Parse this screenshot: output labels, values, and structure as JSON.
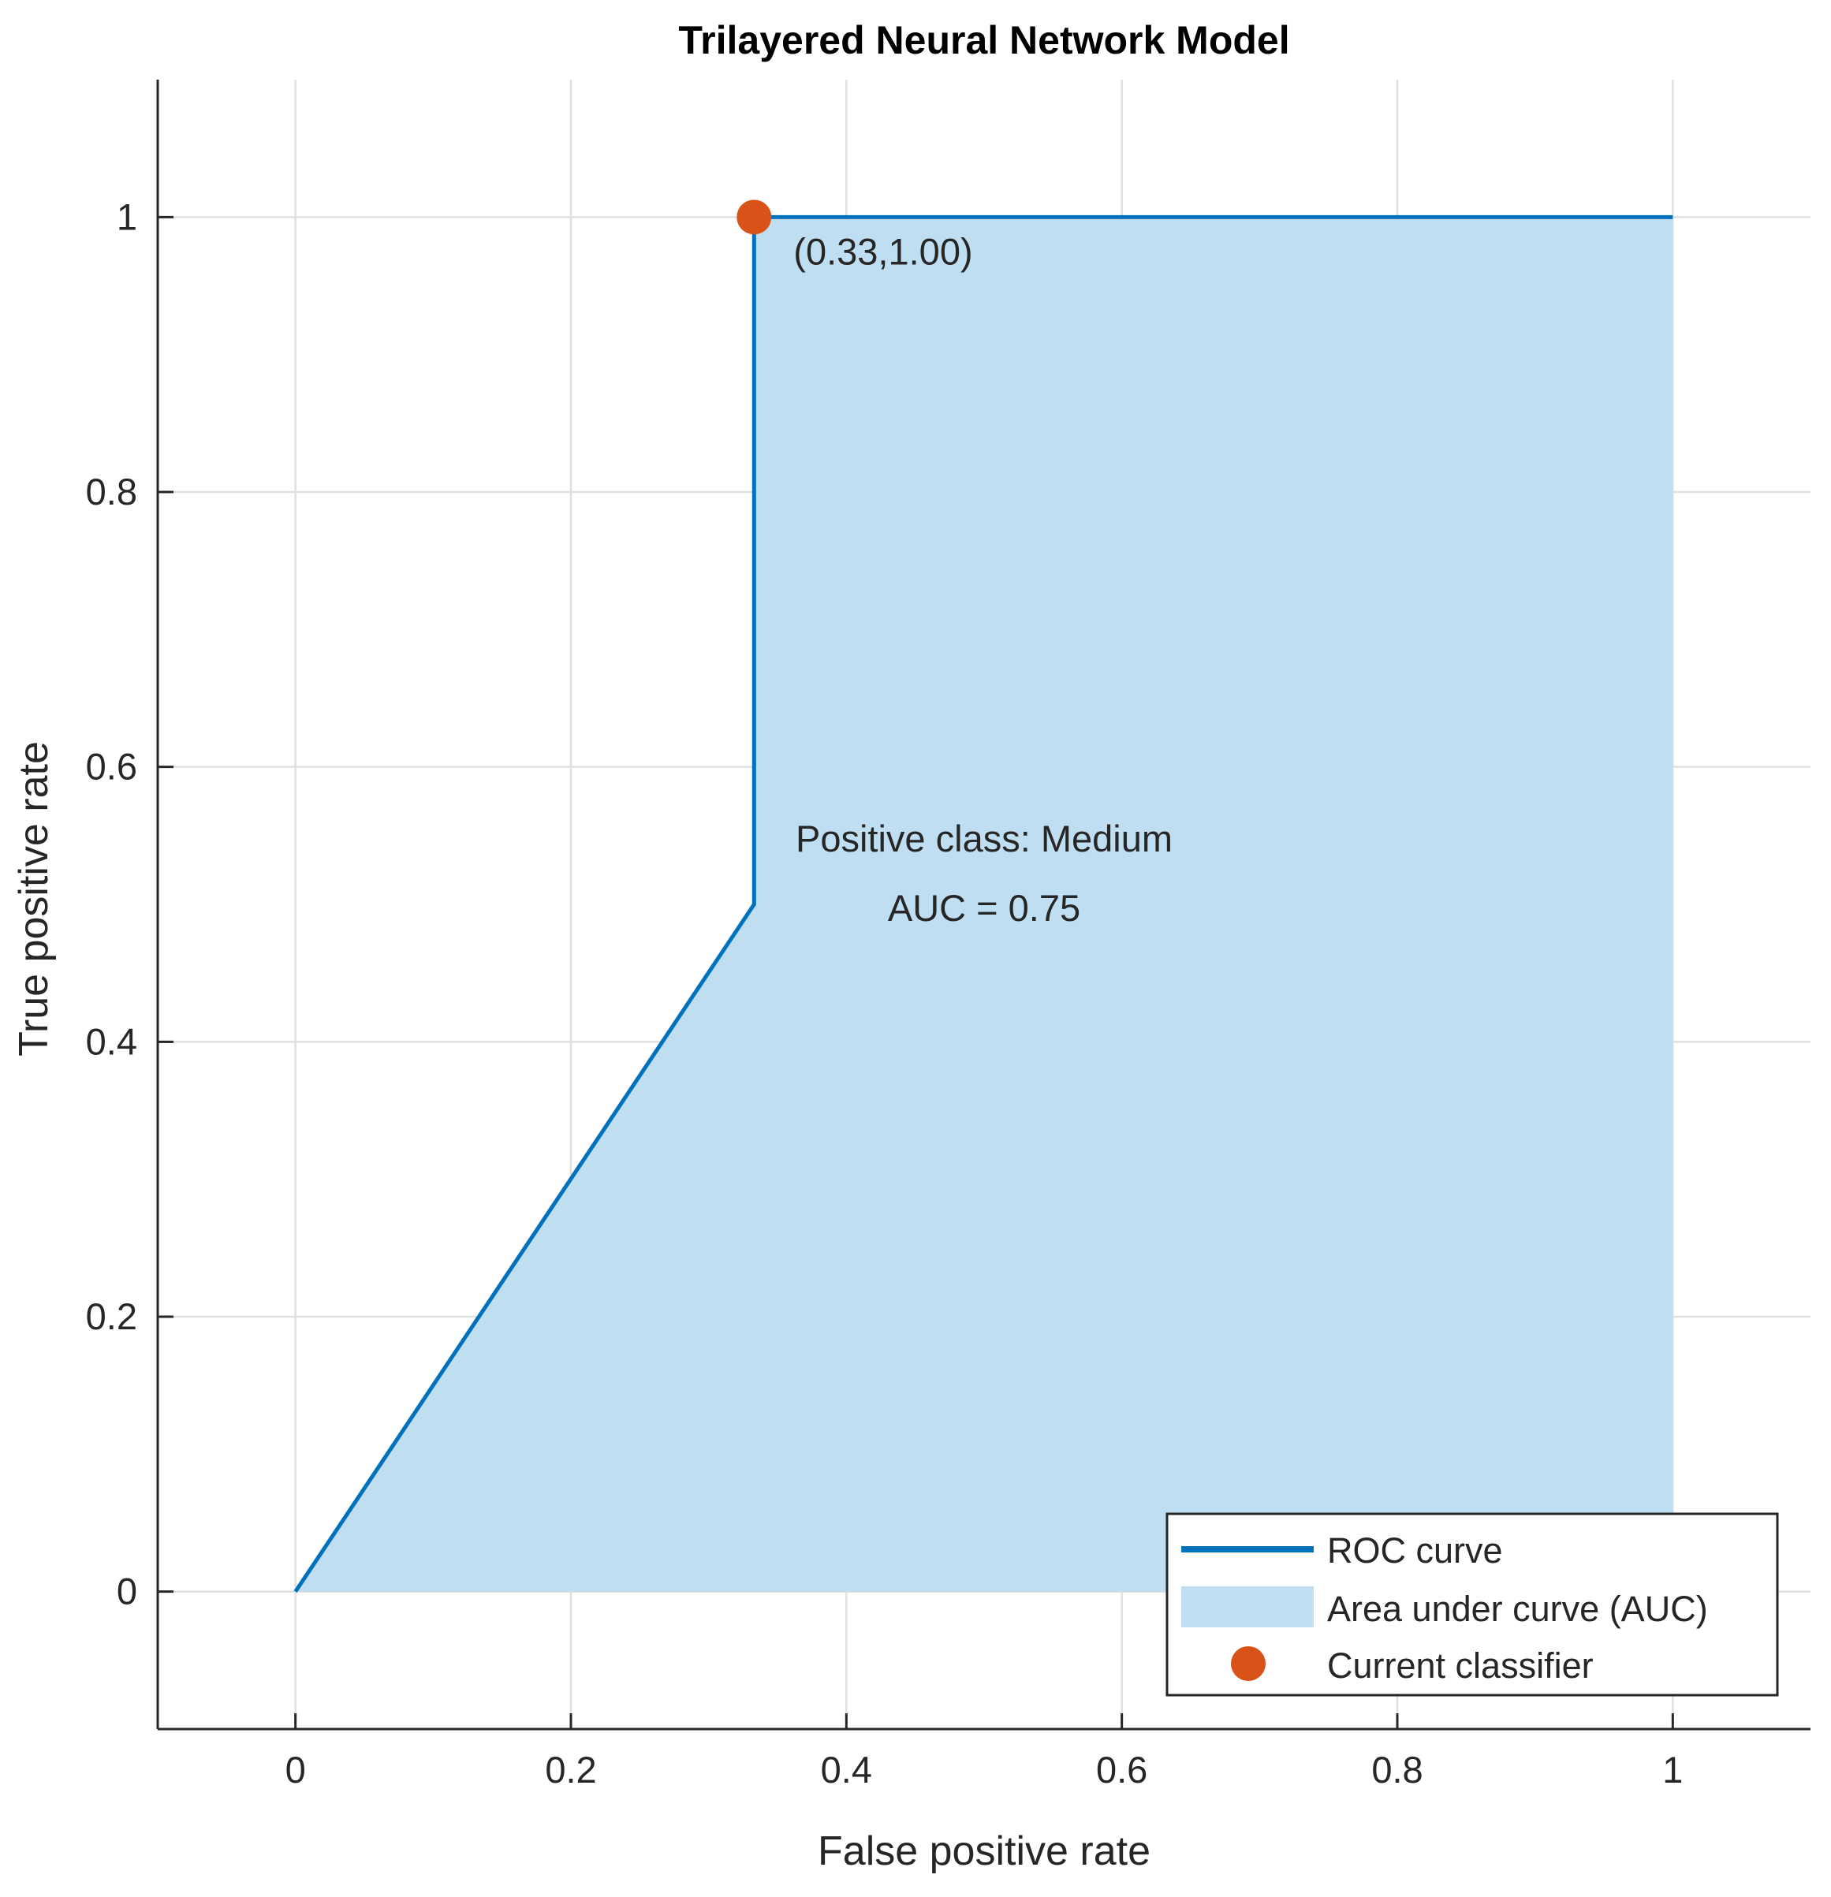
{
  "chart_data": {
    "type": "line",
    "title": "Trilayered Neural Network Model",
    "xlabel": "False positive rate",
    "ylabel": "True positive rate",
    "xlim": [
      -0.1,
      1.1
    ],
    "ylim": [
      -0.1,
      1.1
    ],
    "xticks": [
      0,
      0.2,
      0.4,
      0.6,
      0.8,
      1
    ],
    "yticks": [
      0,
      0.2,
      0.4,
      0.6,
      0.8,
      1
    ],
    "xtick_labels": [
      "0",
      "0.2",
      "0.4",
      "0.6",
      "0.8",
      "1"
    ],
    "ytick_labels": [
      "0",
      "0.2",
      "0.4",
      "0.6",
      "0.8",
      "1"
    ],
    "grid": true,
    "series": [
      {
        "name": "ROC curve",
        "x": [
          0,
          0.333,
          0.333,
          1
        ],
        "y": [
          0,
          0.5,
          1,
          1
        ],
        "color": "#0072BD"
      }
    ],
    "area": {
      "name": "Area under curve (AUC)",
      "color": "#BFDEF2"
    },
    "current_classifier": {
      "name": "Current classifier",
      "x": 0.333,
      "y": 1.0,
      "label": "(0.33,1.00)",
      "color": "#D95319"
    },
    "annotations": [
      "Positive class: Medium",
      "AUC = 0.75"
    ],
    "legend": {
      "position": "bottom-right",
      "entries": [
        "ROC curve",
        "Area under curve (AUC)",
        "Current classifier"
      ]
    }
  }
}
